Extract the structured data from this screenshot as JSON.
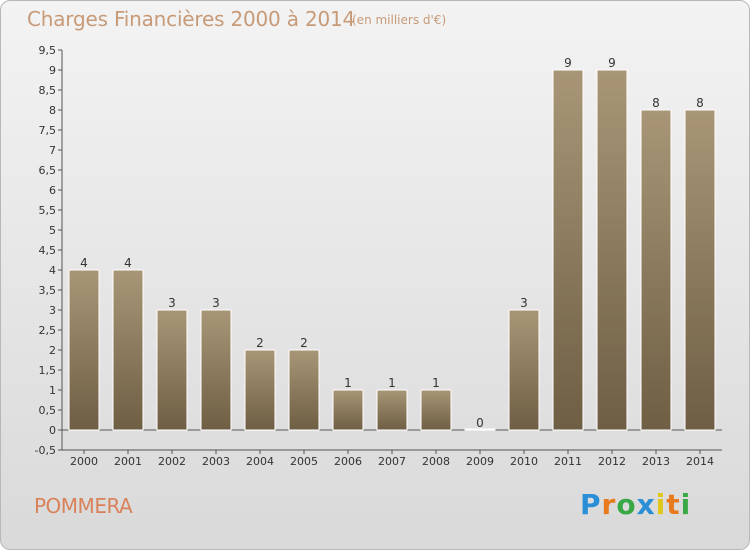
{
  "header": {
    "title": "Charges Financières 2000 à 2014",
    "subtitle": "(en milliers d'€)"
  },
  "footer": {
    "commune": "POMMERA",
    "logo_letters": [
      "P",
      "r",
      "o",
      "x",
      "i",
      "t",
      "i"
    ],
    "logo_colors": [
      "#2a8fd6",
      "#e87a1e",
      "#3aa845",
      "#2a8fd6",
      "#e0c81a",
      "#e87a1e",
      "#3aa845"
    ]
  },
  "colors": {
    "bar_top": "#a89677",
    "bar_bottom": "#6e5e43",
    "title": "#c79a78",
    "commune": "#d9825a"
  },
  "chart_data": {
    "type": "bar",
    "categories": [
      "2000",
      "2001",
      "2002",
      "2003",
      "2004",
      "2005",
      "2006",
      "2007",
      "2008",
      "2009",
      "2010",
      "2011",
      "2012",
      "2013",
      "2014"
    ],
    "values": [
      4,
      4,
      3,
      3,
      2,
      2,
      1,
      1,
      1,
      0,
      3,
      9,
      9,
      8,
      8
    ],
    "data_labels": [
      "4",
      "4",
      "3",
      "3",
      "2",
      "2",
      "1",
      "1",
      "1",
      "0",
      "3",
      "9",
      "9",
      "8",
      "8"
    ],
    "title": "Charges Financières 2000 à 2014",
    "unit": "(en milliers d'€)",
    "xlabel": "",
    "ylabel": "",
    "ylim": [
      -0.5,
      9.5
    ],
    "yticks": [
      "-0,5",
      "0",
      "0,5",
      "1",
      "1,5",
      "2",
      "2,5",
      "3",
      "3,5",
      "4",
      "4,5",
      "5",
      "5,5",
      "6",
      "6,5",
      "7",
      "7,5",
      "8",
      "8,5",
      "9",
      "9,5"
    ],
    "ytick_values": [
      -0.5,
      0,
      0.5,
      1,
      1.5,
      2,
      2.5,
      3,
      3.5,
      4,
      4.5,
      5,
      5.5,
      6,
      6.5,
      7,
      7.5,
      8,
      8.5,
      9,
      9.5
    ],
    "grid": false,
    "legend": "none"
  }
}
